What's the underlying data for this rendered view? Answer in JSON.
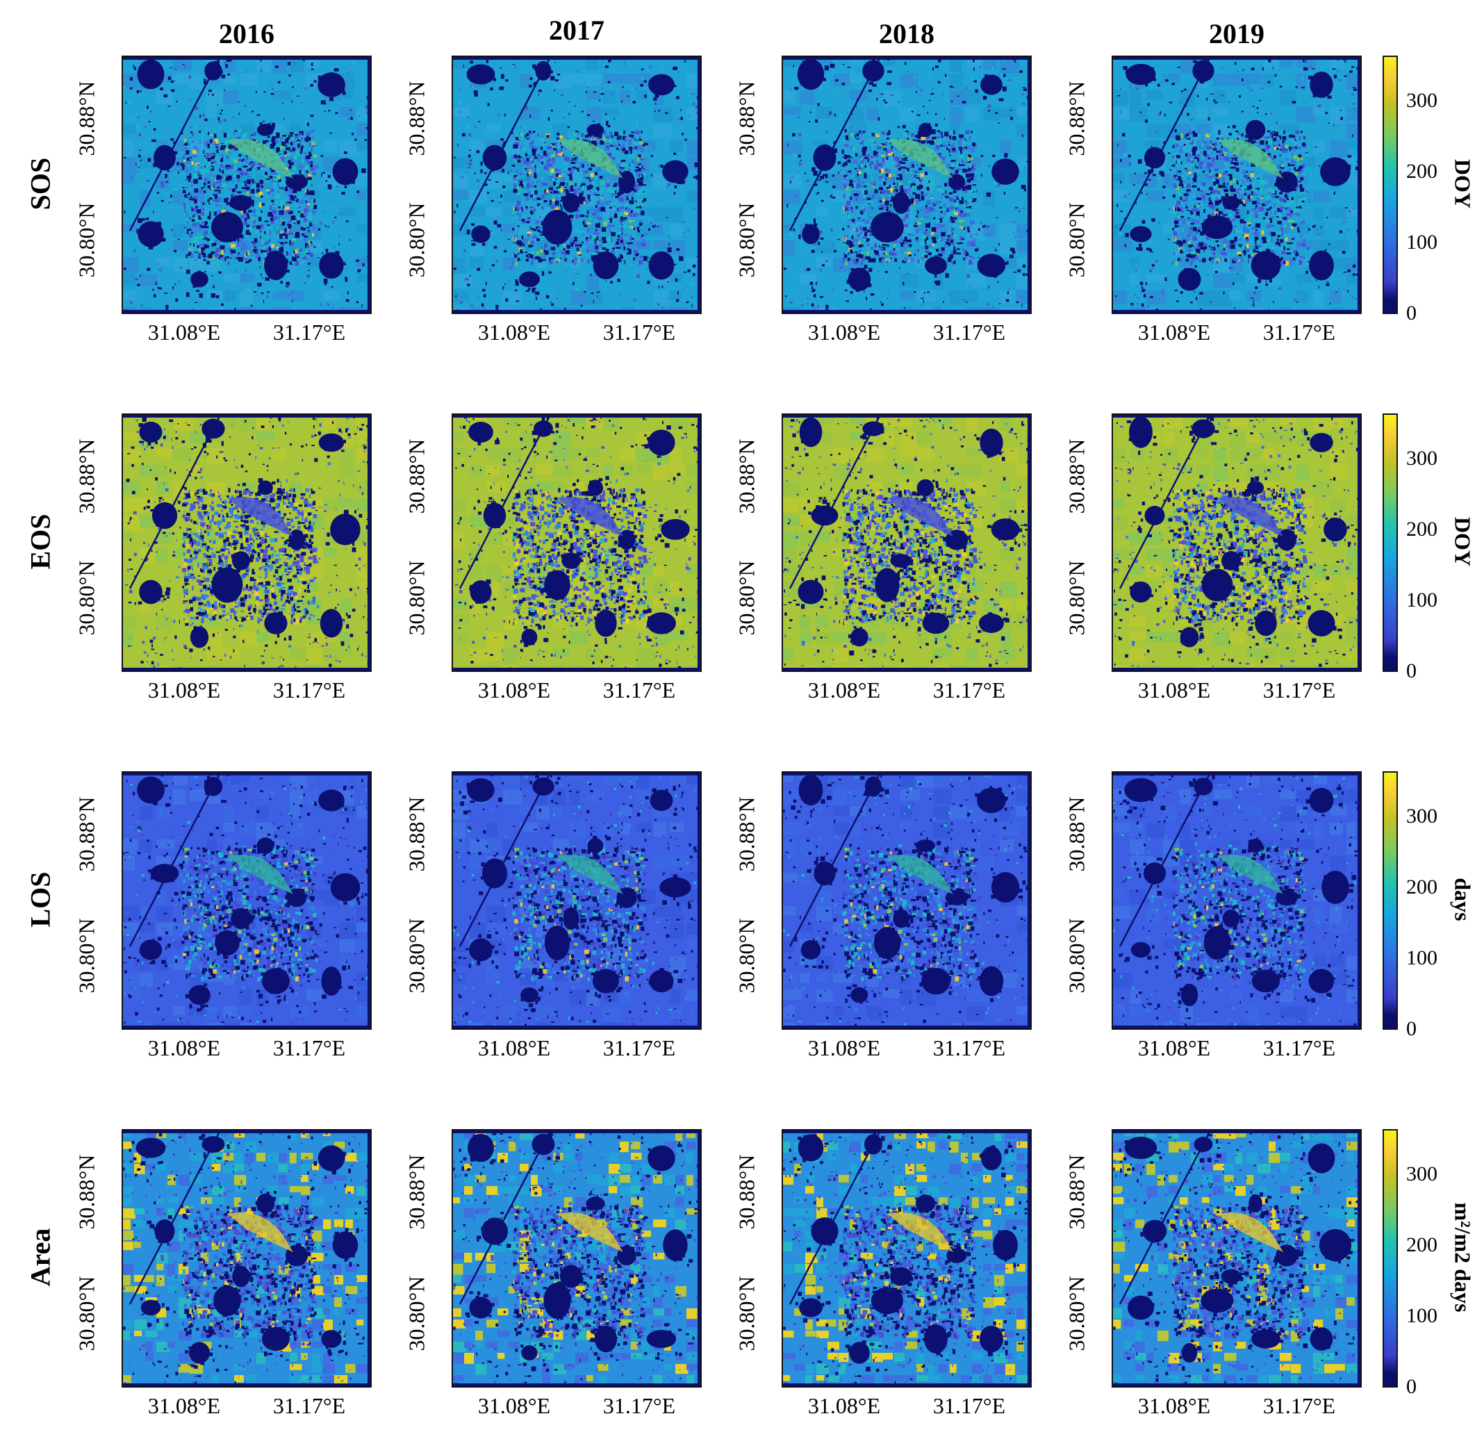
{
  "years": [
    "2016",
    "2017",
    "2018",
    "2019"
  ],
  "rows": [
    {
      "label": "SOS",
      "unit": "DOY",
      "scheme": "sos"
    },
    {
      "label": "EOS",
      "unit": "DOY",
      "scheme": "eos"
    },
    {
      "label": "LOS",
      "unit": "days",
      "scheme": "los"
    },
    {
      "label": "Area",
      "unit": "m²/m2 days",
      "scheme": "area"
    }
  ],
  "lat_ticks": [
    "30.88°N",
    "30.80°N"
  ],
  "lon_ticks": [
    "31.08°E",
    "31.17°E"
  ],
  "colorbar": {
    "ticks": [
      "300",
      "200",
      "100",
      "0"
    ],
    "range": [
      0,
      365
    ],
    "colormap": "parula",
    "colors": [
      "#0b0f6b",
      "#3a3fc9",
      "#2f6de4",
      "#17a8de",
      "#22c4b0",
      "#7fcb5c",
      "#c6c125",
      "#f9cd36",
      "#f7f21a"
    ]
  }
}
